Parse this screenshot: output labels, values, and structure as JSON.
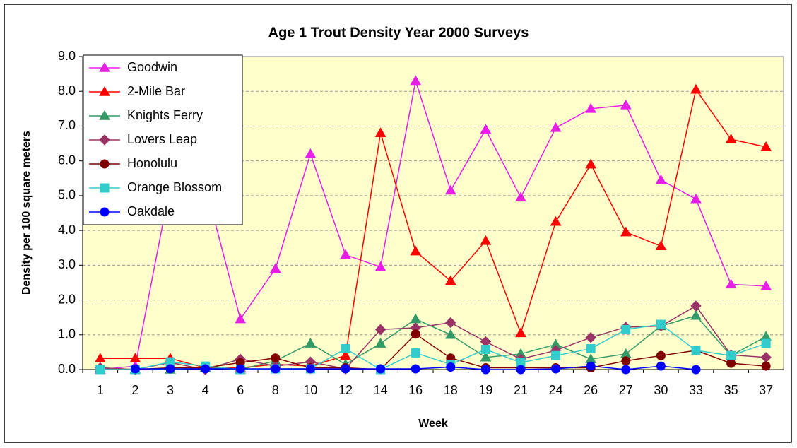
{
  "chart_data": {
    "type": "line",
    "title": "Age 1 Trout Density Year 2000 Surveys",
    "x_label": "Week",
    "y_label": "Density per 100 square meters",
    "categories": [
      "1",
      "2",
      "3",
      "4",
      "6",
      "8",
      "10",
      "12",
      "14",
      "16",
      "18",
      "19",
      "21",
      "24",
      "26",
      "27",
      "30",
      "33",
      "35",
      "37"
    ],
    "ylim": [
      0,
      9
    ],
    "yticks": [
      {
        "value": 0,
        "label": "0.0"
      },
      {
        "value": 1,
        "label": "1.0"
      },
      {
        "value": 2,
        "label": "2.0"
      },
      {
        "value": 3,
        "label": "3.0"
      },
      {
        "value": 4,
        "label": "4.0"
      },
      {
        "value": 5,
        "label": "5.0"
      },
      {
        "value": 6,
        "label": "6.0"
      },
      {
        "value": 7,
        "label": "7.0"
      },
      {
        "value": 8,
        "label": "8.0"
      },
      {
        "value": 9,
        "label": "9.0"
      }
    ],
    "grid": true,
    "legend": "upper-left",
    "series": [
      {
        "name": "Goodwin",
        "color": "#e61ee6",
        "marker": "triangle",
        "values": [
          0,
          0.1,
          5.3,
          5.3,
          1.45,
          2.9,
          6.2,
          3.3,
          2.95,
          8.3,
          5.15,
          6.9,
          4.95,
          6.95,
          7.5,
          7.6,
          5.45,
          4.9,
          2.45,
          2.4
        ]
      },
      {
        "name": "2-Mile Bar",
        "color": "#ff0000",
        "marker": "triangle",
        "values": [
          0.32,
          0.32,
          0.32,
          0.05,
          0.05,
          0.15,
          0.1,
          0.4,
          6.8,
          3.4,
          2.55,
          3.7,
          1.05,
          4.25,
          5.9,
          3.95,
          3.55,
          8.05,
          6.62,
          6.4
        ]
      },
      {
        "name": "Knights Ferry",
        "color": "#339966",
        "marker": "triangle",
        "values": [
          0.05,
          0,
          0,
          0.05,
          0,
          0.25,
          0.75,
          0.15,
          0.75,
          1.45,
          1.0,
          0.35,
          0.45,
          0.72,
          0.3,
          0.45,
          1.25,
          1.55,
          0.4,
          0.95
        ]
      },
      {
        "name": "Lovers Leap",
        "color": "#993366",
        "marker": "diamond",
        "values": [
          0.05,
          0,
          0.2,
          0,
          0.3,
          0.1,
          0.22,
          0.02,
          1.15,
          1.2,
          1.35,
          0.8,
          0.3,
          0.55,
          0.92,
          1.22,
          1.25,
          1.83,
          0.42,
          0.35
        ]
      },
      {
        "name": "Honolulu",
        "color": "#800000",
        "marker": "circle",
        "values": [
          0,
          0,
          0.05,
          0.05,
          0.2,
          0.33,
          0.05,
          0.05,
          0,
          1.02,
          0.33,
          0.05,
          0.05,
          0.05,
          0.05,
          0.25,
          0.4,
          0.55,
          0.18,
          0.1
        ]
      },
      {
        "name": "Orange Blossom",
        "color": "#33cccc",
        "marker": "square",
        "values": [
          0,
          0,
          0.22,
          0.1,
          0,
          0.02,
          0.02,
          0.6,
          0,
          0.48,
          0.15,
          0.58,
          0.2,
          0.4,
          0.6,
          1.15,
          1.3,
          0.55,
          0.4,
          0.75
        ]
      },
      {
        "name": "Oakdale",
        "color": "#0000ff",
        "marker": "circle",
        "values": [
          null,
          0.02,
          0.02,
          0.02,
          0.02,
          0.02,
          0.02,
          0.02,
          0.02,
          0.02,
          0.07,
          0,
          0,
          0.02,
          0.1,
          0,
          0.1,
          0,
          null,
          null
        ]
      }
    ]
  }
}
